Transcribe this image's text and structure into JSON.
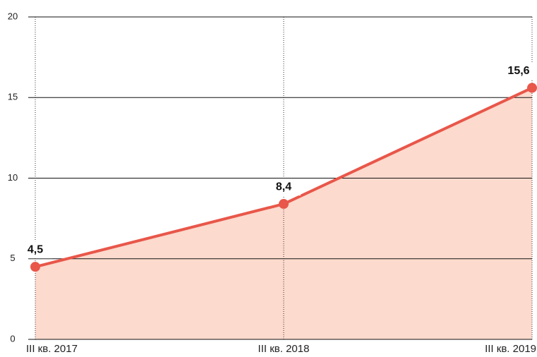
{
  "chart_data": {
    "type": "line",
    "categories": [
      "III кв. 2017",
      "III кв. 2018",
      "III кв. 2019"
    ],
    "values": [
      4.5,
      8.4,
      15.6
    ],
    "value_labels": [
      "4,5",
      "8,4",
      "15,6"
    ],
    "color": "#e8574a",
    "area_color": "#fcdacd",
    "ylim": [
      0,
      20
    ],
    "yticks": [
      0,
      5,
      10,
      15,
      20
    ],
    "grid": true
  }
}
